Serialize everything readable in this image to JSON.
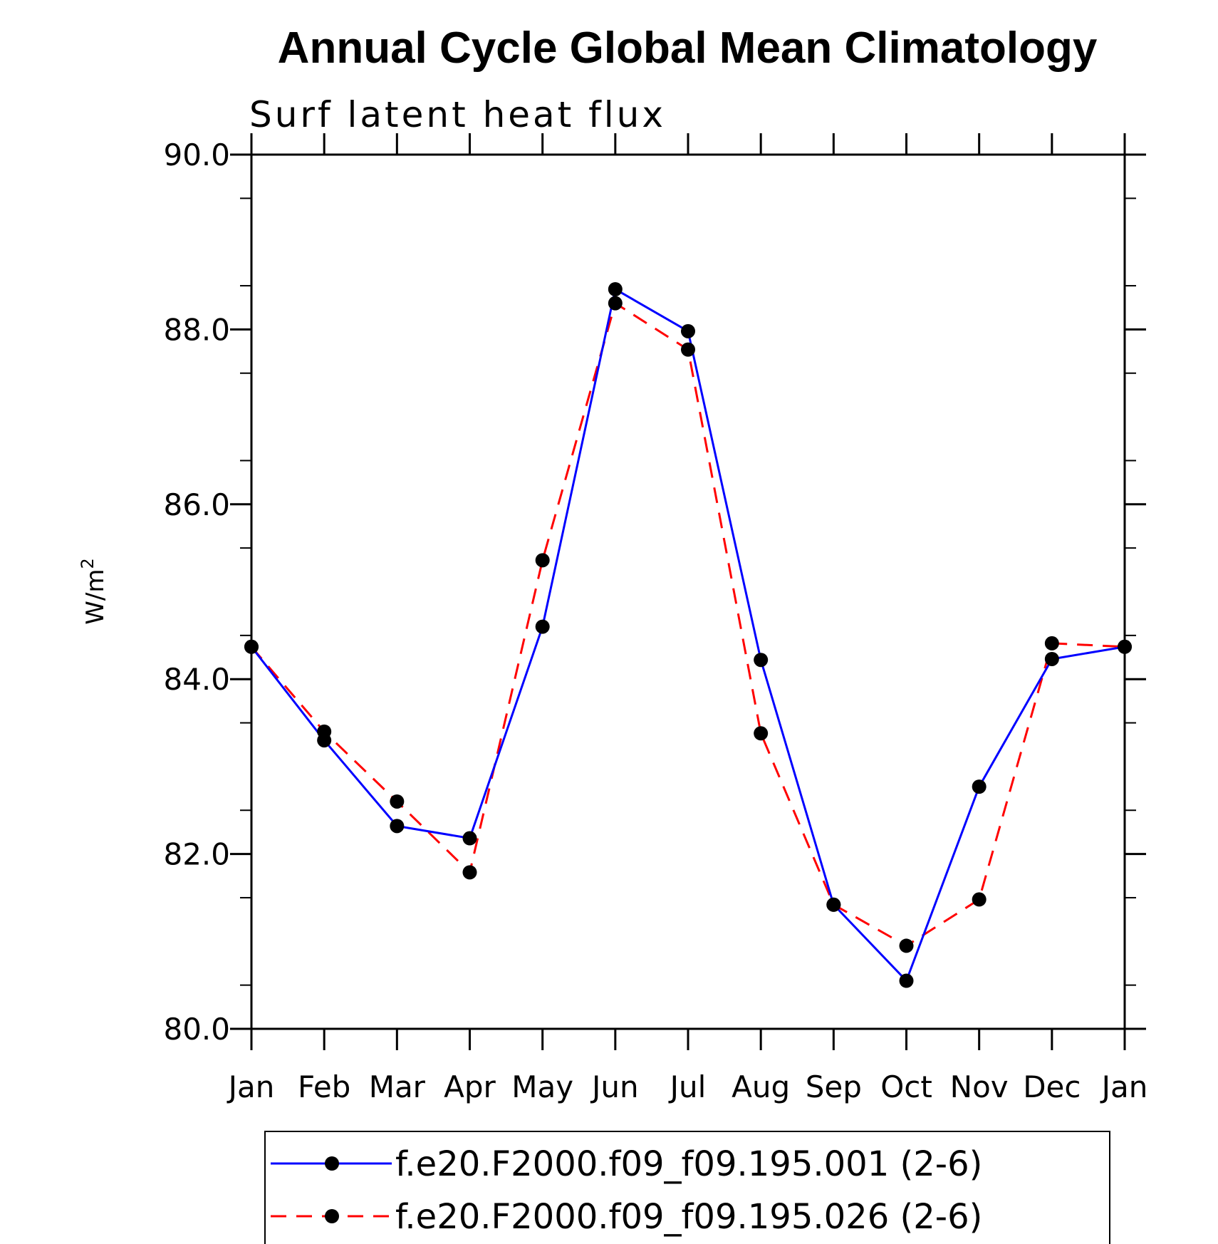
{
  "chart_data": {
    "type": "line",
    "title": "Annual Cycle Global Mean Climatology",
    "subtitle": "Surf latent heat flux",
    "xlabel": "",
    "ylabel": "W/m",
    "ylabel_superscript": "2",
    "categories": [
      "Jan",
      "Feb",
      "Mar",
      "Apr",
      "May",
      "Jun",
      "Jul",
      "Aug",
      "Sep",
      "Oct",
      "Nov",
      "Dec",
      "Jan"
    ],
    "ylim": [
      80.0,
      90.0
    ],
    "yticks": [
      80.0,
      82.0,
      84.0,
      86.0,
      88.0,
      90.0
    ],
    "ytick_labels": [
      "80.0",
      "82.0",
      "84.0",
      "86.0",
      "88.0",
      "90.0"
    ],
    "y_minor_step": 0.5,
    "series": [
      {
        "name": "f.e20.F2000.f09_f09.195.001 (2-6)",
        "color": "#0000ff",
        "line_style": "solid",
        "marker_color": "#000000",
        "values": [
          84.37,
          83.3,
          82.32,
          82.18,
          84.6,
          88.46,
          87.98,
          84.22,
          81.42,
          80.55,
          82.77,
          84.23,
          84.37
        ]
      },
      {
        "name": "f.e20.F2000.f09_f09.195.026 (2-6)",
        "color": "#ff0000",
        "line_style": "dashed",
        "marker_color": "#000000",
        "values": [
          84.37,
          83.4,
          82.6,
          81.79,
          85.36,
          88.3,
          87.77,
          83.38,
          81.42,
          80.95,
          81.48,
          84.41,
          84.37
        ]
      }
    ],
    "legend_position": "bottom-center",
    "grid": false
  }
}
